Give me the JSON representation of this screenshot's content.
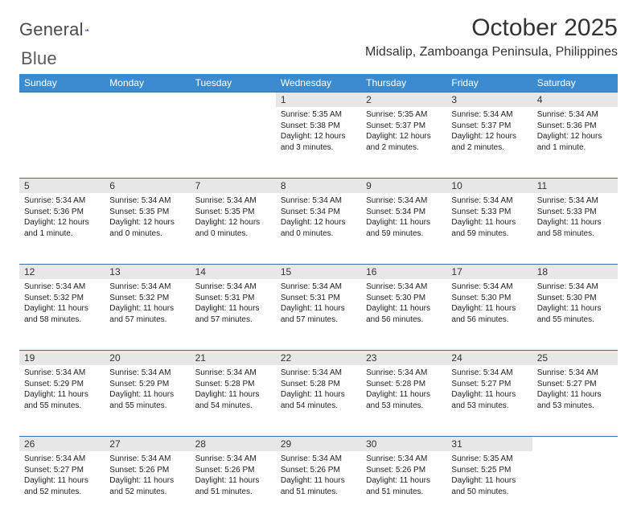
{
  "brand": {
    "word1": "General",
    "word2": "Blue"
  },
  "title": "October 2025",
  "location": "Midsalip, Zamboanga Peninsula, Philippines",
  "colors": {
    "header_bg": "#3b8bd0",
    "header_fg": "#ffffff",
    "daynum_bg": "#e7e7e7",
    "rule": "#3b6fa0",
    "text": "#222222",
    "title_color": "#333333"
  },
  "font": {
    "title_size": 30,
    "location_size": 16,
    "dayhead_size": 12,
    "body_size": 10
  },
  "day_names": [
    "Sunday",
    "Monday",
    "Tuesday",
    "Wednesday",
    "Thursday",
    "Friday",
    "Saturday"
  ],
  "weeks": [
    [
      null,
      null,
      null,
      {
        "n": "1",
        "sr": "5:35 AM",
        "ss": "5:38 PM",
        "dl": "12 hours and 3 minutes."
      },
      {
        "n": "2",
        "sr": "5:35 AM",
        "ss": "5:37 PM",
        "dl": "12 hours and 2 minutes."
      },
      {
        "n": "3",
        "sr": "5:34 AM",
        "ss": "5:37 PM",
        "dl": "12 hours and 2 minutes."
      },
      {
        "n": "4",
        "sr": "5:34 AM",
        "ss": "5:36 PM",
        "dl": "12 hours and 1 minute."
      }
    ],
    [
      {
        "n": "5",
        "sr": "5:34 AM",
        "ss": "5:36 PM",
        "dl": "12 hours and 1 minute."
      },
      {
        "n": "6",
        "sr": "5:34 AM",
        "ss": "5:35 PM",
        "dl": "12 hours and 0 minutes."
      },
      {
        "n": "7",
        "sr": "5:34 AM",
        "ss": "5:35 PM",
        "dl": "12 hours and 0 minutes."
      },
      {
        "n": "8",
        "sr": "5:34 AM",
        "ss": "5:34 PM",
        "dl": "12 hours and 0 minutes."
      },
      {
        "n": "9",
        "sr": "5:34 AM",
        "ss": "5:34 PM",
        "dl": "11 hours and 59 minutes."
      },
      {
        "n": "10",
        "sr": "5:34 AM",
        "ss": "5:33 PM",
        "dl": "11 hours and 59 minutes."
      },
      {
        "n": "11",
        "sr": "5:34 AM",
        "ss": "5:33 PM",
        "dl": "11 hours and 58 minutes."
      }
    ],
    [
      {
        "n": "12",
        "sr": "5:34 AM",
        "ss": "5:32 PM",
        "dl": "11 hours and 58 minutes."
      },
      {
        "n": "13",
        "sr": "5:34 AM",
        "ss": "5:32 PM",
        "dl": "11 hours and 57 minutes."
      },
      {
        "n": "14",
        "sr": "5:34 AM",
        "ss": "5:31 PM",
        "dl": "11 hours and 57 minutes."
      },
      {
        "n": "15",
        "sr": "5:34 AM",
        "ss": "5:31 PM",
        "dl": "11 hours and 57 minutes."
      },
      {
        "n": "16",
        "sr": "5:34 AM",
        "ss": "5:30 PM",
        "dl": "11 hours and 56 minutes."
      },
      {
        "n": "17",
        "sr": "5:34 AM",
        "ss": "5:30 PM",
        "dl": "11 hours and 56 minutes."
      },
      {
        "n": "18",
        "sr": "5:34 AM",
        "ss": "5:30 PM",
        "dl": "11 hours and 55 minutes."
      }
    ],
    [
      {
        "n": "19",
        "sr": "5:34 AM",
        "ss": "5:29 PM",
        "dl": "11 hours and 55 minutes."
      },
      {
        "n": "20",
        "sr": "5:34 AM",
        "ss": "5:29 PM",
        "dl": "11 hours and 55 minutes."
      },
      {
        "n": "21",
        "sr": "5:34 AM",
        "ss": "5:28 PM",
        "dl": "11 hours and 54 minutes."
      },
      {
        "n": "22",
        "sr": "5:34 AM",
        "ss": "5:28 PM",
        "dl": "11 hours and 54 minutes."
      },
      {
        "n": "23",
        "sr": "5:34 AM",
        "ss": "5:28 PM",
        "dl": "11 hours and 53 minutes."
      },
      {
        "n": "24",
        "sr": "5:34 AM",
        "ss": "5:27 PM",
        "dl": "11 hours and 53 minutes."
      },
      {
        "n": "25",
        "sr": "5:34 AM",
        "ss": "5:27 PM",
        "dl": "11 hours and 53 minutes."
      }
    ],
    [
      {
        "n": "26",
        "sr": "5:34 AM",
        "ss": "5:27 PM",
        "dl": "11 hours and 52 minutes."
      },
      {
        "n": "27",
        "sr": "5:34 AM",
        "ss": "5:26 PM",
        "dl": "11 hours and 52 minutes."
      },
      {
        "n": "28",
        "sr": "5:34 AM",
        "ss": "5:26 PM",
        "dl": "11 hours and 51 minutes."
      },
      {
        "n": "29",
        "sr": "5:34 AM",
        "ss": "5:26 PM",
        "dl": "11 hours and 51 minutes."
      },
      {
        "n": "30",
        "sr": "5:34 AM",
        "ss": "5:26 PM",
        "dl": "11 hours and 51 minutes."
      },
      {
        "n": "31",
        "sr": "5:35 AM",
        "ss": "5:25 PM",
        "dl": "11 hours and 50 minutes."
      },
      null
    ]
  ],
  "labels": {
    "sunrise": "Sunrise:",
    "sunset": "Sunset:",
    "daylight": "Daylight:"
  }
}
